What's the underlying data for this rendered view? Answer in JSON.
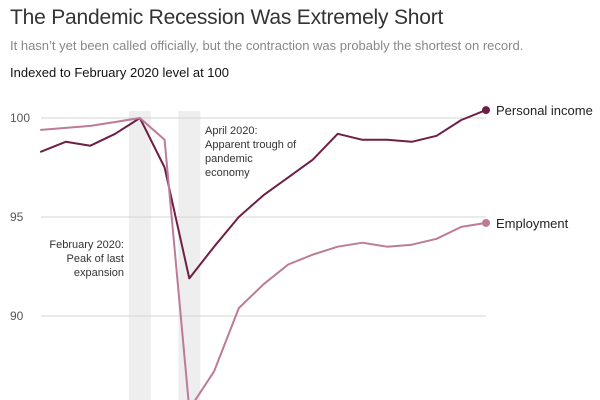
{
  "header": {
    "title": "The Pandemic Recession Was Extremely Short",
    "subtitle": "It hasn’t yet been called officially, but the contraction was probably the shortest on record.",
    "note": "Indexed to February 2020 level at 100"
  },
  "chart_data": {
    "type": "line",
    "y_ticks": [
      90,
      95,
      100
    ],
    "ylim": [
      85,
      101.2
    ],
    "grid": true,
    "shaded_periods": [
      {
        "x": 4
      },
      {
        "x": 6
      }
    ],
    "annotations": [
      {
        "lines": [
          "February 2020:",
          "Peak of last",
          "expansion"
        ]
      },
      {
        "lines": [
          "April 2020:",
          "Apparent trough of",
          "pandemic",
          "economy"
        ]
      }
    ],
    "series": [
      {
        "name": "Personal income",
        "color": "#6e1f45",
        "values": [
          98.3,
          98.8,
          98.6,
          99.2,
          100.0,
          97.5,
          91.9,
          93.5,
          95.0,
          96.1,
          97.0,
          97.9,
          99.2,
          98.9,
          98.9,
          98.8,
          99.1,
          99.9,
          100.4
        ]
      },
      {
        "name": "Employment",
        "color": "#bd7b98",
        "values": [
          99.4,
          99.5,
          99.6,
          99.8,
          100.0,
          98.9,
          85.3,
          87.2,
          90.4,
          91.6,
          92.6,
          93.1,
          93.5,
          93.7,
          93.5,
          93.6,
          93.9,
          94.5,
          94.7
        ]
      }
    ]
  }
}
